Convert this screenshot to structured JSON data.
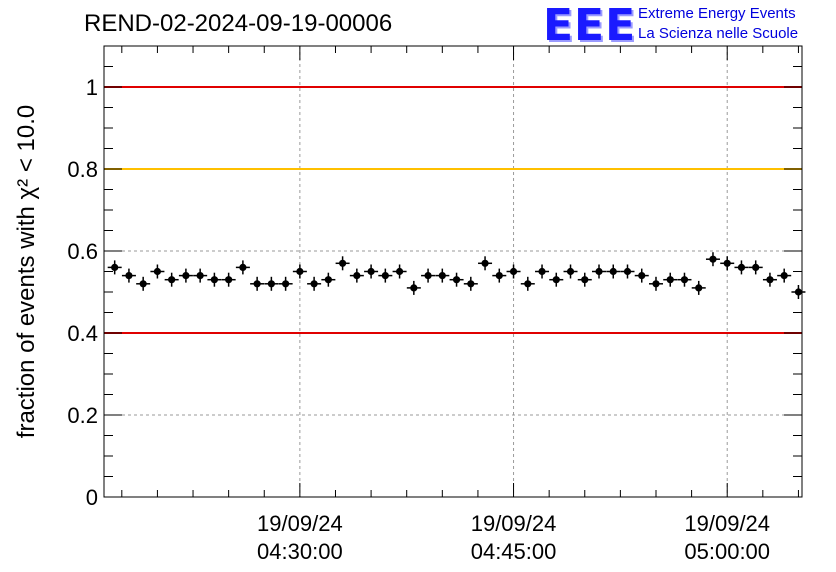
{
  "title": "REND-02-2024-09-19-00006",
  "logo": {
    "mark": "EEE",
    "line1": "Extreme Energy Events",
    "line2": "La Scienza nelle Scuole"
  },
  "colors": {
    "threshold_red": "#e00000",
    "threshold_yellow": "#ffc000",
    "marker": "#000000",
    "logo_blue": "#1a1aff"
  },
  "chart_data": {
    "type": "scatter",
    "title": "REND-02-2024-09-19-00006",
    "ylabel": "fraction of events with χ² < 10.0",
    "xlabel": "",
    "ylim": [
      0,
      1.1
    ],
    "yticks": [
      "0",
      "0.2",
      "0.4",
      "0.6",
      "0.8",
      "1"
    ],
    "xticks": [
      {
        "date": "19/09/24",
        "time": "04:30:00"
      },
      {
        "date": "19/09/24",
        "time": "04:45:00"
      },
      {
        "date": "19/09/24",
        "time": "05:00:00"
      }
    ],
    "xlim": [
      "04:16:15",
      "05:05:15"
    ],
    "grid": true,
    "reference_lines": [
      {
        "y": 1.0,
        "color": "red"
      },
      {
        "y": 0.8,
        "color": "yellow"
      },
      {
        "y": 0.4,
        "color": "red"
      }
    ],
    "series": [
      {
        "times": [
          "04:17:00",
          "04:18:00",
          "04:19:00",
          "04:20:00",
          "04:21:00",
          "04:22:00",
          "04:23:00",
          "04:24:00",
          "04:25:00",
          "04:26:00",
          "04:27:00",
          "04:28:00",
          "04:29:00",
          "04:30:00",
          "04:31:00",
          "04:32:00",
          "04:33:00",
          "04:34:00",
          "04:35:00",
          "04:36:00",
          "04:37:00",
          "04:38:00",
          "04:39:00",
          "04:40:00",
          "04:41:00",
          "04:42:00",
          "04:43:00",
          "04:44:00",
          "04:45:00",
          "04:46:00",
          "04:47:00",
          "04:48:00",
          "04:49:00",
          "04:50:00",
          "04:51:00",
          "04:52:00",
          "04:53:00",
          "04:54:00",
          "04:55:00",
          "04:56:00",
          "04:57:00",
          "04:58:00",
          "04:59:00",
          "05:00:00",
          "05:01:00",
          "05:02:00",
          "05:03:00",
          "05:04:00",
          "05:05:00"
        ],
        "values": [
          0.56,
          0.54,
          0.52,
          0.55,
          0.53,
          0.54,
          0.54,
          0.53,
          0.53,
          0.56,
          0.52,
          0.52,
          0.52,
          0.55,
          0.52,
          0.53,
          0.57,
          0.54,
          0.55,
          0.54,
          0.55,
          0.51,
          0.54,
          0.54,
          0.53,
          0.52,
          0.57,
          0.54,
          0.55,
          0.52,
          0.55,
          0.53,
          0.55,
          0.53,
          0.55,
          0.55,
          0.55,
          0.54,
          0.52,
          0.53,
          0.53,
          0.51,
          0.58,
          0.57,
          0.56,
          0.56,
          0.53,
          0.54,
          0.5
        ]
      }
    ]
  }
}
